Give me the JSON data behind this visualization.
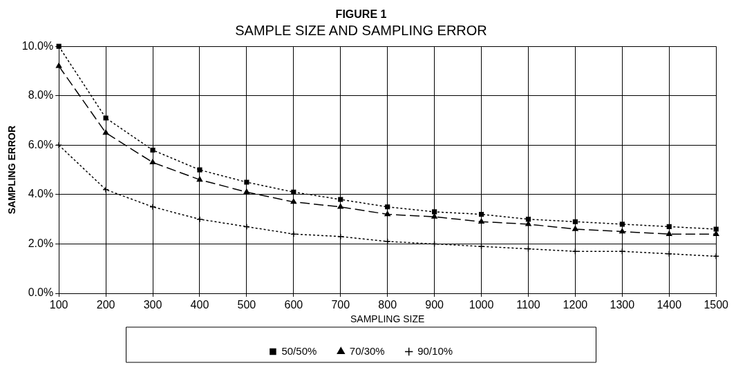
{
  "chart_data": {
    "type": "line",
    "title": "FIGURE 1",
    "subtitle": "SAMPLE SIZE AND SAMPLING ERROR",
    "xlabel": "SAMPLING SIZE",
    "ylabel": "SAMPLING ERROR",
    "x": [
      100,
      200,
      300,
      400,
      500,
      600,
      700,
      800,
      900,
      1000,
      1100,
      1200,
      1300,
      1400,
      1500
    ],
    "series": [
      {
        "name": "50/50%",
        "color": "#000000",
        "marker": "square",
        "line_style": "dotted",
        "values": [
          10.0,
          7.1,
          5.8,
          5.0,
          4.5,
          4.1,
          3.8,
          3.5,
          3.3,
          3.2,
          3.0,
          2.9,
          2.8,
          2.7,
          2.6
        ]
      },
      {
        "name": "70/30%",
        "color": "#000000",
        "marker": "triangle",
        "line_style": "dashed",
        "values": [
          9.2,
          6.5,
          5.3,
          4.6,
          4.1,
          3.7,
          3.5,
          3.2,
          3.1,
          2.9,
          2.8,
          2.6,
          2.5,
          2.4,
          2.4
        ]
      },
      {
        "name": "90/10%",
        "color": "#000000",
        "marker": "cross",
        "line_style": "dotted",
        "values": [
          6.0,
          4.2,
          3.5,
          3.0,
          2.7,
          2.4,
          2.3,
          2.1,
          2.0,
          1.9,
          1.8,
          1.7,
          1.7,
          1.6,
          1.5
        ]
      }
    ],
    "xlim": [
      100,
      1500
    ],
    "xticks": [
      100,
      200,
      300,
      400,
      500,
      600,
      700,
      800,
      900,
      1000,
      1100,
      1200,
      1300,
      1400,
      1500
    ],
    "ylim": [
      0,
      10
    ],
    "yticks": [
      {
        "value": 0,
        "label": "0.0%"
      },
      {
        "value": 2,
        "label": "2.0%"
      },
      {
        "value": 4,
        "label": "4.0%"
      },
      {
        "value": 6,
        "label": "6.0%"
      },
      {
        "value": 8,
        "label": "8.0%"
      },
      {
        "value": 10,
        "label": "10.0%"
      }
    ],
    "grid": true,
    "legend": "bottom"
  }
}
